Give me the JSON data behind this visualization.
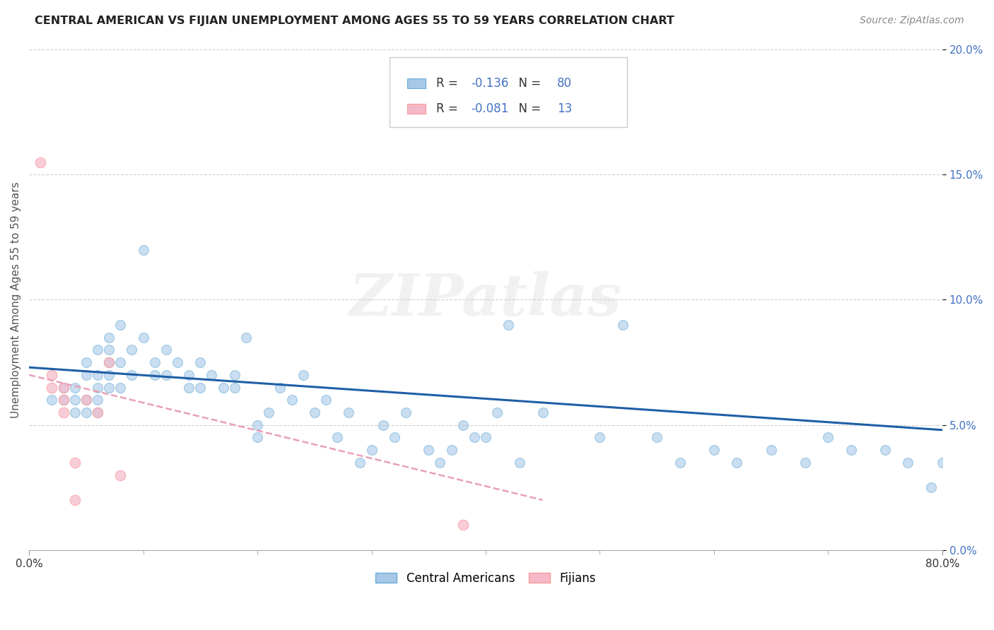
{
  "title": "CENTRAL AMERICAN VS FIJIAN UNEMPLOYMENT AMONG AGES 55 TO 59 YEARS CORRELATION CHART",
  "source": "Source: ZipAtlas.com",
  "ylabel": "Unemployment Among Ages 55 to 59 years",
  "xlim": [
    0.0,
    0.8
  ],
  "ylim": [
    0.0,
    0.2
  ],
  "xtick_positions": [
    0.0,
    0.8
  ],
  "xticklabels": [
    "0.0%",
    "80.0%"
  ],
  "ytick_positions": [
    0.0,
    0.05,
    0.1,
    0.15,
    0.2
  ],
  "yticklabels": [
    "0.0%",
    "5.0%",
    "10.0%",
    "15.0%",
    "20.0%"
  ],
  "blue_R": -0.136,
  "blue_N": 80,
  "pink_R": -0.081,
  "pink_N": 13,
  "blue_color": "#a8c8e8",
  "pink_color": "#f4b8c8",
  "blue_edge_color": "#6baed6",
  "pink_edge_color": "#fb9a99",
  "blue_line_color": "#1f5fa6",
  "pink_line_color": "#e8a0b8",
  "tick_label_color": "#4472c4",
  "watermark": "ZIPatlas",
  "legend_label_blue": "Central Americans",
  "legend_label_pink": "Fijians",
  "blue_scatter_x": [
    0.02,
    0.03,
    0.03,
    0.04,
    0.04,
    0.04,
    0.05,
    0.05,
    0.05,
    0.05,
    0.06,
    0.06,
    0.06,
    0.06,
    0.06,
    0.07,
    0.07,
    0.07,
    0.07,
    0.07,
    0.08,
    0.08,
    0.08,
    0.09,
    0.09,
    0.1,
    0.1,
    0.11,
    0.11,
    0.12,
    0.12,
    0.13,
    0.14,
    0.14,
    0.15,
    0.15,
    0.16,
    0.17,
    0.18,
    0.18,
    0.19,
    0.2,
    0.2,
    0.21,
    0.22,
    0.23,
    0.24,
    0.25,
    0.26,
    0.27,
    0.28,
    0.29,
    0.3,
    0.31,
    0.32,
    0.33,
    0.35,
    0.36,
    0.37,
    0.38,
    0.39,
    0.4,
    0.41,
    0.42,
    0.43,
    0.45,
    0.5,
    0.52,
    0.55,
    0.57,
    0.6,
    0.62,
    0.65,
    0.68,
    0.7,
    0.72,
    0.75,
    0.77,
    0.79,
    0.8
  ],
  "blue_scatter_y": [
    0.06,
    0.06,
    0.065,
    0.055,
    0.06,
    0.065,
    0.055,
    0.06,
    0.07,
    0.075,
    0.055,
    0.06,
    0.065,
    0.07,
    0.08,
    0.065,
    0.07,
    0.075,
    0.08,
    0.085,
    0.065,
    0.075,
    0.09,
    0.07,
    0.08,
    0.085,
    0.12,
    0.07,
    0.075,
    0.07,
    0.08,
    0.075,
    0.065,
    0.07,
    0.065,
    0.075,
    0.07,
    0.065,
    0.065,
    0.07,
    0.085,
    0.045,
    0.05,
    0.055,
    0.065,
    0.06,
    0.07,
    0.055,
    0.06,
    0.045,
    0.055,
    0.035,
    0.04,
    0.05,
    0.045,
    0.055,
    0.04,
    0.035,
    0.04,
    0.05,
    0.045,
    0.045,
    0.055,
    0.09,
    0.035,
    0.055,
    0.045,
    0.09,
    0.045,
    0.035,
    0.04,
    0.035,
    0.04,
    0.035,
    0.045,
    0.04,
    0.04,
    0.035,
    0.025,
    0.035
  ],
  "pink_scatter_x": [
    0.01,
    0.02,
    0.02,
    0.03,
    0.03,
    0.03,
    0.04,
    0.04,
    0.05,
    0.06,
    0.07,
    0.08,
    0.38
  ],
  "pink_scatter_y": [
    0.155,
    0.065,
    0.07,
    0.055,
    0.06,
    0.065,
    0.035,
    0.02,
    0.06,
    0.055,
    0.075,
    0.03,
    0.01
  ],
  "blue_trend_x": [
    0.0,
    0.8
  ],
  "blue_trend_y": [
    0.073,
    0.048
  ],
  "pink_trend_x": [
    0.0,
    0.45
  ],
  "pink_trend_y": [
    0.07,
    0.02
  ]
}
